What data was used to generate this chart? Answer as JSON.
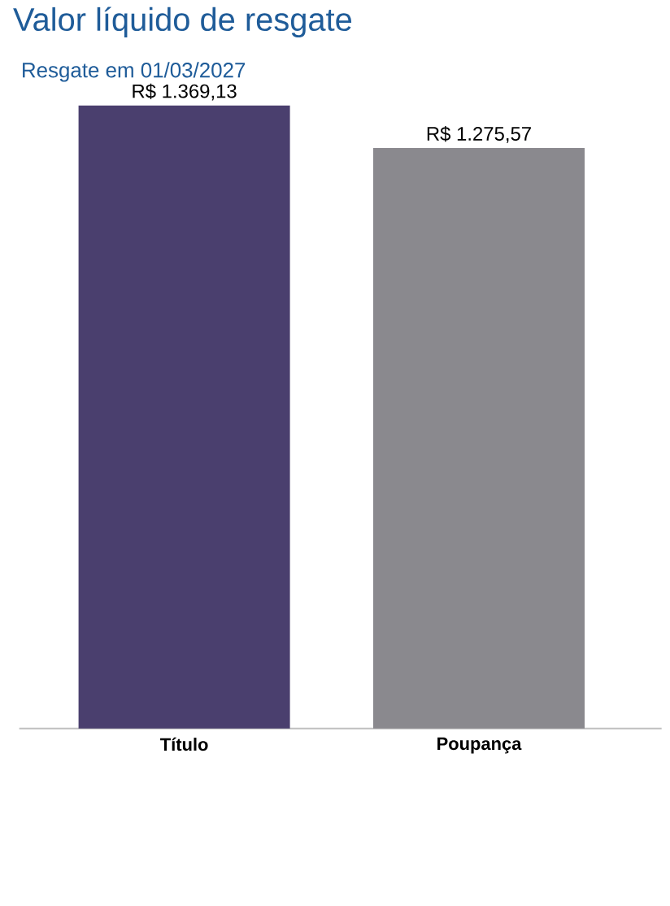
{
  "chart_data": {
    "type": "bar",
    "title": "Valor líquido de resgate",
    "subtitle": "Resgate em 01/03/2027",
    "categories": [
      "Título",
      "Poupança"
    ],
    "values": [
      1369.13,
      1275.57
    ],
    "colors": [
      "#4a3f6e",
      "#8a898e"
    ],
    "value_labels": [
      "R$ 1.369,13",
      "R$ 1.275,57"
    ]
  }
}
